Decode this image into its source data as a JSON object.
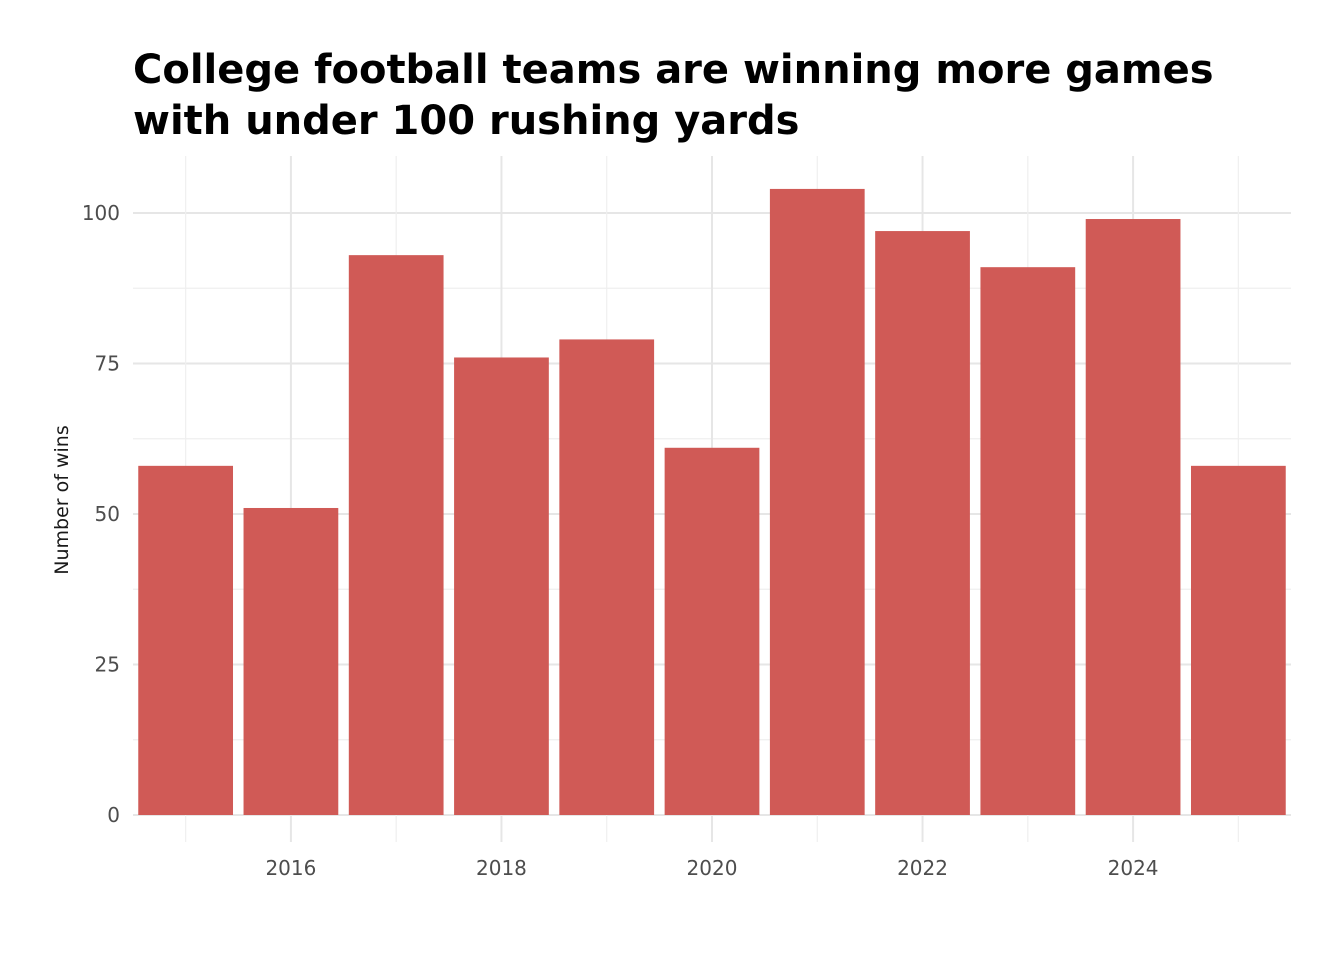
{
  "chart_data": {
    "type": "bar",
    "title_lines": [
      "College football teams are winning more games",
      "with under 100 rushing yards"
    ],
    "xlabel": "",
    "ylabel": "Number of wins",
    "x": [
      2015,
      2016,
      2017,
      2018,
      2019,
      2020,
      2021,
      2022,
      2023,
      2024,
      2025
    ],
    "values": [
      58,
      51,
      93,
      76,
      79,
      61,
      104,
      97,
      91,
      99,
      58
    ],
    "x_ticks": [
      "2016",
      "2018",
      "2020",
      "2022",
      "2024"
    ],
    "y_ticks": [
      "0",
      "25",
      "50",
      "75",
      "100"
    ],
    "ylim": [
      0,
      109
    ],
    "xlim": [
      2014.5,
      2025.5
    ],
    "bar_color": "#d05a56",
    "grid": true,
    "legend": "none"
  }
}
